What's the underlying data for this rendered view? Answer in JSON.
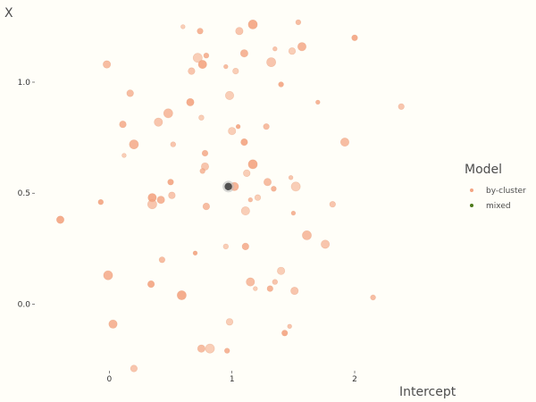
{
  "chart_data": {
    "type": "scatter",
    "xlabel": "Intercept",
    "ylabel": "X",
    "xlim": [
      -0.6,
      2.75
    ],
    "ylim": [
      -0.3,
      1.33
    ],
    "x_ticks": [
      {
        "value": 0,
        "label": "0"
      },
      {
        "value": 1,
        "label": "1"
      },
      {
        "value": 2,
        "label": "2"
      }
    ],
    "y_ticks": [
      {
        "value": 0.0,
        "label": "0.0"
      },
      {
        "value": 0.5,
        "label": "0.5"
      },
      {
        "value": 1.0,
        "label": "1.0"
      }
    ],
    "grid": false,
    "legend": {
      "title": "Model",
      "placement": "right",
      "entries": [
        {
          "label": "by-cluster",
          "color": "#f4a582"
        },
        {
          "label": "mixed",
          "color": "#4d7a1a"
        }
      ]
    },
    "series": [
      {
        "name": "by-cluster",
        "color": "#f4a582",
        "points": [
          [
            0.6,
            1.25
          ],
          [
            0.74,
            1.23
          ],
          [
            1.06,
            1.23
          ],
          [
            1.17,
            1.26
          ],
          [
            1.54,
            1.27
          ],
          [
            1.49,
            1.14
          ],
          [
            1.57,
            1.16
          ],
          [
            1.35,
            1.15
          ],
          [
            2.0,
            1.2
          ],
          [
            -0.02,
            1.08
          ],
          [
            0.72,
            1.11
          ],
          [
            0.79,
            1.12
          ],
          [
            0.67,
            1.05
          ],
          [
            0.76,
            1.08
          ],
          [
            0.95,
            1.07
          ],
          [
            1.03,
            1.05
          ],
          [
            1.1,
            1.13
          ],
          [
            1.32,
            1.09
          ],
          [
            1.4,
            0.99
          ],
          [
            0.17,
            0.95
          ],
          [
            0.98,
            0.94
          ],
          [
            1.7,
            0.91
          ],
          [
            2.38,
            0.89
          ],
          [
            0.66,
            0.91
          ],
          [
            0.48,
            0.86
          ],
          [
            0.75,
            0.84
          ],
          [
            0.11,
            0.81
          ],
          [
            0.4,
            0.82
          ],
          [
            1.05,
            0.8
          ],
          [
            1.28,
            0.8
          ],
          [
            1.0,
            0.78
          ],
          [
            0.2,
            0.72
          ],
          [
            0.52,
            0.72
          ],
          [
            1.1,
            0.73
          ],
          [
            1.92,
            0.73
          ],
          [
            0.12,
            0.67
          ],
          [
            0.78,
            0.68
          ],
          [
            0.78,
            0.62
          ],
          [
            1.17,
            0.63
          ],
          [
            0.76,
            0.6
          ],
          [
            1.12,
            0.59
          ],
          [
            1.02,
            0.53
          ],
          [
            1.48,
            0.57
          ],
          [
            0.5,
            0.55
          ],
          [
            1.29,
            0.55
          ],
          [
            1.52,
            0.53
          ],
          [
            1.34,
            0.52
          ],
          [
            0.51,
            0.49
          ],
          [
            0.35,
            0.48
          ],
          [
            1.15,
            0.47
          ],
          [
            1.21,
            0.48
          ],
          [
            0.42,
            0.47
          ],
          [
            0.35,
            0.45
          ],
          [
            -0.07,
            0.46
          ],
          [
            0.79,
            0.44
          ],
          [
            1.11,
            0.42
          ],
          [
            1.5,
            0.41
          ],
          [
            1.82,
            0.45
          ],
          [
            -0.4,
            0.38
          ],
          [
            1.61,
            0.31
          ],
          [
            0.95,
            0.26
          ],
          [
            1.11,
            0.26
          ],
          [
            1.76,
            0.27
          ],
          [
            0.7,
            0.23
          ],
          [
            0.43,
            0.2
          ],
          [
            1.4,
            0.15
          ],
          [
            -0.01,
            0.13
          ],
          [
            1.35,
            0.1
          ],
          [
            0.34,
            0.09
          ],
          [
            1.15,
            0.1
          ],
          [
            1.19,
            0.07
          ],
          [
            1.31,
            0.07
          ],
          [
            1.51,
            0.06
          ],
          [
            0.59,
            0.04
          ],
          [
            2.15,
            0.03
          ],
          [
            0.98,
            -0.08
          ],
          [
            0.03,
            -0.09
          ],
          [
            1.47,
            -0.1
          ],
          [
            1.43,
            -0.13
          ],
          [
            0.75,
            -0.2
          ],
          [
            0.82,
            -0.2
          ],
          [
            0.96,
            -0.21
          ],
          [
            0.2,
            -0.29
          ]
        ]
      },
      {
        "name": "mixed",
        "color": "#4d7a1a",
        "points": [
          [
            0.97,
            0.53
          ]
        ]
      }
    ]
  }
}
